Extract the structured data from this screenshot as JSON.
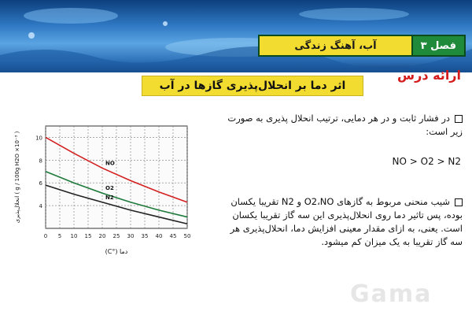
{
  "header": {
    "chapter_label": "فصل ۳",
    "chapter_title": "آب، آهنگ زندگی",
    "presentation_label": "ارائه درس",
    "lesson_title": "اثر دما بر انحلال‌پذیری گازها در آب"
  },
  "content": {
    "bullet1": "در فشار ثابت و در هر دمایی، ترتیب انحلال پذیری به صورت زیر است:",
    "formula": "NO > O2 > N2",
    "bullet2": "شیب منحنی مربوط به گازهای O2،NO و N2 تقریبا یکسان بوده، پس تاثیر دما روی انحلال‌پذیری این سه گاز تقریبا یکسان است. یعنی، به ازای مقدار معینی افزایش دما، انحلال‌پذیری هر سه گاز تقریبا به یک میزان کم میشود."
  },
  "watermark": "Gama",
  "colors": {
    "no_curve": "#d42020",
    "o2_curve": "#1d7a3a",
    "n2_curve": "#222222",
    "grid": "#7a7a7a",
    "banner": "#2f78c3",
    "highlight": "#f2dc2f"
  },
  "chart_data": {
    "type": "line",
    "xlabel": "دما (°C)",
    "ylabel": "انحلال‌پذیری ( g / 100g H2O ×10⁻³ )",
    "x_ticks": [
      "0",
      "5",
      "10",
      "15",
      "20",
      "25",
      "30",
      "35",
      "40",
      "45",
      "50"
    ],
    "y_ticks": [
      "4",
      "6",
      "8",
      "10"
    ],
    "xlim": [
      0,
      50
    ],
    "ylim": [
      2,
      11
    ],
    "grid": true,
    "series": [
      {
        "name": "NO",
        "x": [
          0,
          10,
          20,
          30,
          40,
          50
        ],
        "y": [
          10,
          8.6,
          7.3,
          6.2,
          5.2,
          4.3
        ]
      },
      {
        "name": "O2",
        "x": [
          0,
          10,
          20,
          30,
          40,
          50
        ],
        "y": [
          7,
          6.0,
          5.1,
          4.3,
          3.6,
          3.0
        ]
      },
      {
        "name": "N2",
        "x": [
          0,
          10,
          20,
          30,
          40,
          50
        ],
        "y": [
          5.8,
          5.0,
          4.3,
          3.6,
          3.0,
          2.4
        ]
      }
    ]
  }
}
